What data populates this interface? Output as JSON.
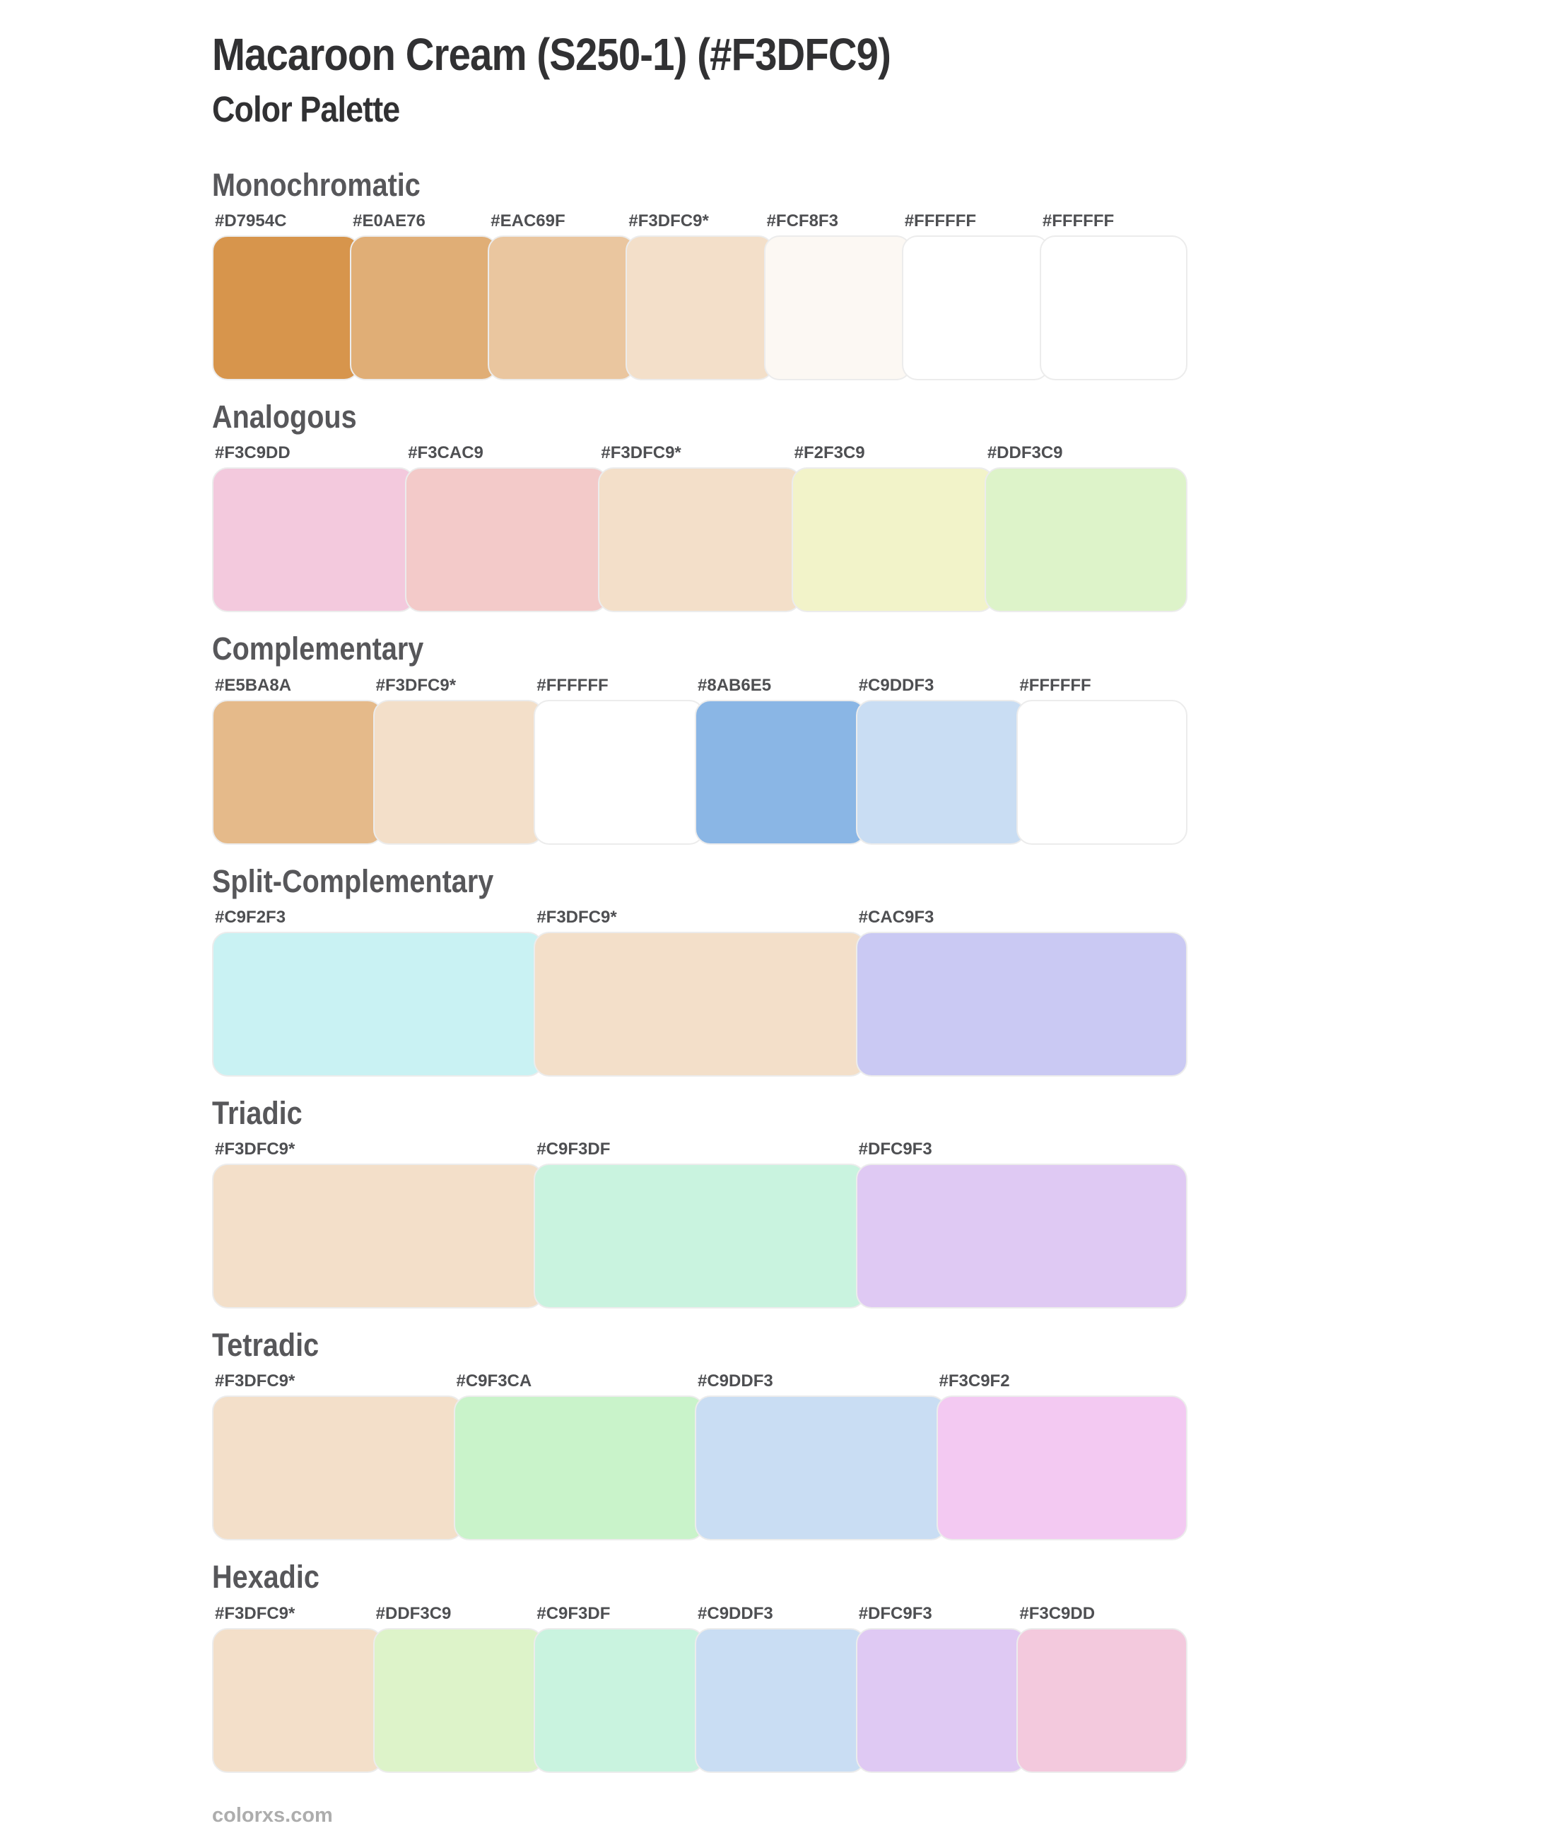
{
  "page": {
    "title": "Macaroon Cream (S250-1) (#F3DFC9)",
    "subtitle": "Color Palette",
    "base_color_hex": "#F3DFC9",
    "footer": "colorxs.com"
  },
  "colors": {
    "title_text": "#313133",
    "heading_text": "#57575A",
    "label_text": "#4E4F52",
    "footer_text": "#ADADAD",
    "swatch_border": "#ECECEC",
    "background": "#FFFFFF"
  },
  "sections": [
    {
      "title": "Monochromatic",
      "swatches": [
        {
          "label": "#D7954C",
          "hex": "#D7954C"
        },
        {
          "label": "#E0AE76",
          "hex": "#E0AE76"
        },
        {
          "label": "#EAC69F",
          "hex": "#EAC69F"
        },
        {
          "label": "#F3DFC9*",
          "hex": "#F3DFC9"
        },
        {
          "label": "#FCF8F3",
          "hex": "#FCF8F3"
        },
        {
          "label": "#FFFFFF",
          "hex": "#FFFFFF"
        },
        {
          "label": "#FFFFFF",
          "hex": "#FFFFFF"
        }
      ]
    },
    {
      "title": "Analogous",
      "swatches": [
        {
          "label": "#F3C9DD",
          "hex": "#F3C9DD"
        },
        {
          "label": "#F3CAC9",
          "hex": "#F3CAC9"
        },
        {
          "label": "#F3DFC9*",
          "hex": "#F3DFC9"
        },
        {
          "label": "#F2F3C9",
          "hex": "#F2F3C9"
        },
        {
          "label": "#DDF3C9",
          "hex": "#DDF3C9"
        }
      ]
    },
    {
      "title": "Complementary",
      "swatches": [
        {
          "label": "#E5BA8A",
          "hex": "#E5BA8A"
        },
        {
          "label": "#F3DFC9*",
          "hex": "#F3DFC9"
        },
        {
          "label": "#FFFFFF",
          "hex": "#FFFFFF"
        },
        {
          "label": "#8AB6E5",
          "hex": "#8AB6E5"
        },
        {
          "label": "#C9DDF3",
          "hex": "#C9DDF3"
        },
        {
          "label": "#FFFFFF",
          "hex": "#FFFFFF"
        }
      ]
    },
    {
      "title": "Split-Complementary",
      "swatches": [
        {
          "label": "#C9F2F3",
          "hex": "#C9F2F3"
        },
        {
          "label": "#F3DFC9*",
          "hex": "#F3DFC9"
        },
        {
          "label": "#CAC9F3",
          "hex": "#CAC9F3"
        }
      ]
    },
    {
      "title": "Triadic",
      "swatches": [
        {
          "label": "#F3DFC9*",
          "hex": "#F3DFC9"
        },
        {
          "label": "#C9F3DF",
          "hex": "#C9F3DF"
        },
        {
          "label": "#DFC9F3",
          "hex": "#DFC9F3"
        }
      ]
    },
    {
      "title": "Tetradic",
      "swatches": [
        {
          "label": "#F3DFC9*",
          "hex": "#F3DFC9"
        },
        {
          "label": "#C9F3CA",
          "hex": "#C9F3CA"
        },
        {
          "label": "#C9DDF3",
          "hex": "#C9DDF3"
        },
        {
          "label": "#F3C9F2",
          "hex": "#F3C9F2"
        }
      ]
    },
    {
      "title": "Hexadic",
      "swatches": [
        {
          "label": "#F3DFC9*",
          "hex": "#F3DFC9"
        },
        {
          "label": "#DDF3C9",
          "hex": "#DDF3C9"
        },
        {
          "label": "#C9F3DF",
          "hex": "#C9F3DF"
        },
        {
          "label": "#C9DDF3",
          "hex": "#C9DDF3"
        },
        {
          "label": "#DFC9F3",
          "hex": "#DFC9F3"
        },
        {
          "label": "#F3C9DD",
          "hex": "#F3C9DD"
        }
      ]
    }
  ]
}
